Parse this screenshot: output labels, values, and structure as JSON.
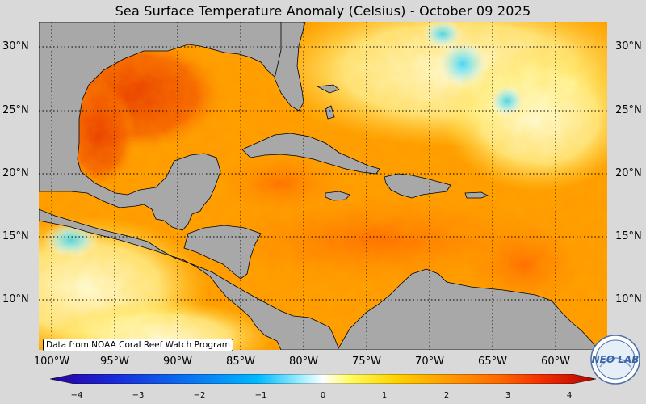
{
  "title": "Sea Surface Temperature Anomaly (Celsius) - October 09 2025",
  "credit": "Data from NOAA Coral Reef Watch Program",
  "lat_labels": [
    "30°N",
    "25°N",
    "20°N",
    "15°N",
    "10°N"
  ],
  "lon_labels": [
    "100°W",
    "95°W",
    "90°W",
    "85°W",
    "80°W",
    "75°W",
    "70°W",
    "65°W",
    "60°W"
  ],
  "colorbar": {
    "ticks": [
      "−4",
      "−3",
      "−2",
      "−1",
      "0",
      "1",
      "2",
      "3",
      "4"
    ],
    "range": [
      -4,
      4
    ],
    "colors": [
      "#2a00a0",
      "#1a2ad8",
      "#0a70f0",
      "#00b8ff",
      "#a0f0ff",
      "#ffffff",
      "#fffb60",
      "#ffd400",
      "#ffa000",
      "#ff6a00",
      "#f03000",
      "#b80000"
    ]
  },
  "map": {
    "land_color": "#a8a8a8",
    "grid": "dotted"
  },
  "logo": {
    "text": "NEO LAB"
  }
}
